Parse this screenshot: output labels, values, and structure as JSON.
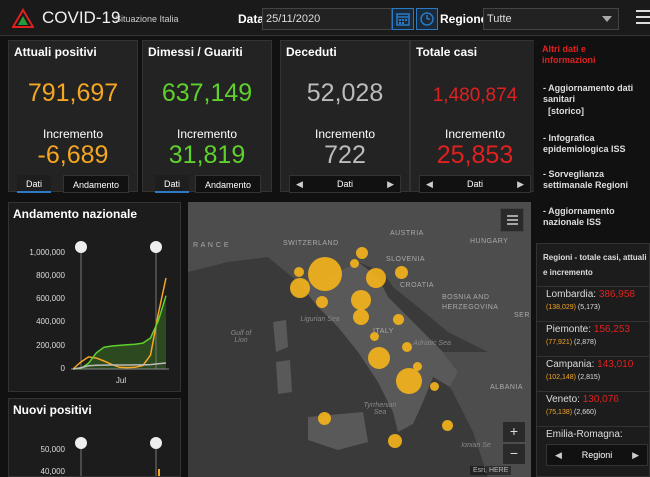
{
  "header": {
    "app_title": "COVID-19",
    "app_subtitle": "Situazione Italia",
    "date_label": "Data",
    "date_value": "25/11/2020",
    "region_label": "Regione",
    "region_value": "Tutte"
  },
  "colors": {
    "orange": "#f5a623",
    "green": "#5ed12c",
    "gray": "#bbbbbb",
    "red": "#e12020",
    "accent": "#2a7ac4"
  },
  "cards": [
    {
      "title": "Attuali positivi",
      "value": "791,697",
      "inc_label": "Incremento",
      "increment": "-6,689",
      "tab1": "Dati",
      "tab2": "Andamento"
    },
    {
      "title": "Dimessi / Guariti",
      "value": "637,149",
      "inc_label": "Incremento",
      "increment": "31,819",
      "tab1": "Dati",
      "tab2": "Andamento"
    },
    {
      "title": "Deceduti",
      "value": "52,028",
      "inc_label": "Incremento",
      "increment": "722",
      "pager": "Dati"
    },
    {
      "title": "Totale casi",
      "value": "1,480,874",
      "inc_label": "Incremento",
      "increment": "25,853",
      "pager": "Dati"
    }
  ],
  "info": {
    "title": "Altri dati e informazioni",
    "items": [
      "- Aggiornamento dati sanitari",
      "[storico]",
      "- Infografica epidemiologica ISS",
      "- Sorveglianza settimanale Regioni",
      "- Aggiornamento nazionale ISS"
    ]
  },
  "regions": {
    "title": "Regioni - totale casi, attuali e incremento",
    "rows": [
      {
        "name": "Lombardia:",
        "total": "386,958",
        "current": "(138,029)",
        "increment": "(5,173)"
      },
      {
        "name": "Piemonte:",
        "total": "156,253",
        "current": "(77,921)",
        "increment": "(2,878)"
      },
      {
        "name": "Campania:",
        "total": "143,010",
        "current": "(102,148)",
        "increment": "(2,815)"
      },
      {
        "name": "Veneto:",
        "total": "130,076",
        "current": "(75,138)",
        "increment": "(2,660)"
      },
      {
        "name": "Emilia-Romagna:",
        "total": "",
        "current": "",
        "increment": ""
      }
    ],
    "pager": "Regioni"
  },
  "map": {
    "labels": {
      "france": "R A N C E",
      "switzerland": "SWITZERLAND",
      "austria": "AUSTRIA",
      "hungary": "HUNGARY",
      "slovenia": "SLOVENIA",
      "croatia": "CROATIA",
      "bosnia": "BOSNIA AND",
      "herzegovina": "HERZEGOVINA",
      "serbia": "SER",
      "italy": "ITALY",
      "albania": "ALBANIA",
      "ligurian": "Ligurian Sea",
      "lion": "Gulf of Lion",
      "adriatic": "Adriatic Sea",
      "tyrrhenian": "Tyrrhenian Sea",
      "ionian": "Ionian Se"
    },
    "attribution": "Esri, HERE"
  },
  "chart_data": [
    {
      "type": "line",
      "title": "Andamento nazionale",
      "x_tick_labels": [
        "Jul"
      ],
      "y_tick_labels": [
        "1,000,000",
        "800,000",
        "600,000",
        "400,000",
        "200,000",
        "0"
      ],
      "ylim": [
        0,
        1000000
      ],
      "series": [
        {
          "color": "#f5a623",
          "values": [
            0,
            60000,
            105000,
            95000,
            70000,
            40000,
            15000,
            12000,
            15000,
            30000,
            120000,
            480000,
            791697
          ]
        },
        {
          "color": "#5ed12c",
          "values": [
            0,
            5000,
            50000,
            140000,
            190000,
            200000,
            205000,
            210000,
            215000,
            225000,
            270000,
            420000,
            637149
          ]
        },
        {
          "color": "#bbbbbb",
          "values": [
            0,
            10000,
            28000,
            33000,
            34000,
            35000,
            35000,
            35000,
            36000,
            36000,
            38000,
            45000,
            52028
          ]
        }
      ]
    },
    {
      "type": "bar",
      "title": "Nuovi positivi",
      "y_tick_labels": [
        "50,000",
        "40,000"
      ],
      "ylim": [
        0,
        50000
      ]
    }
  ]
}
